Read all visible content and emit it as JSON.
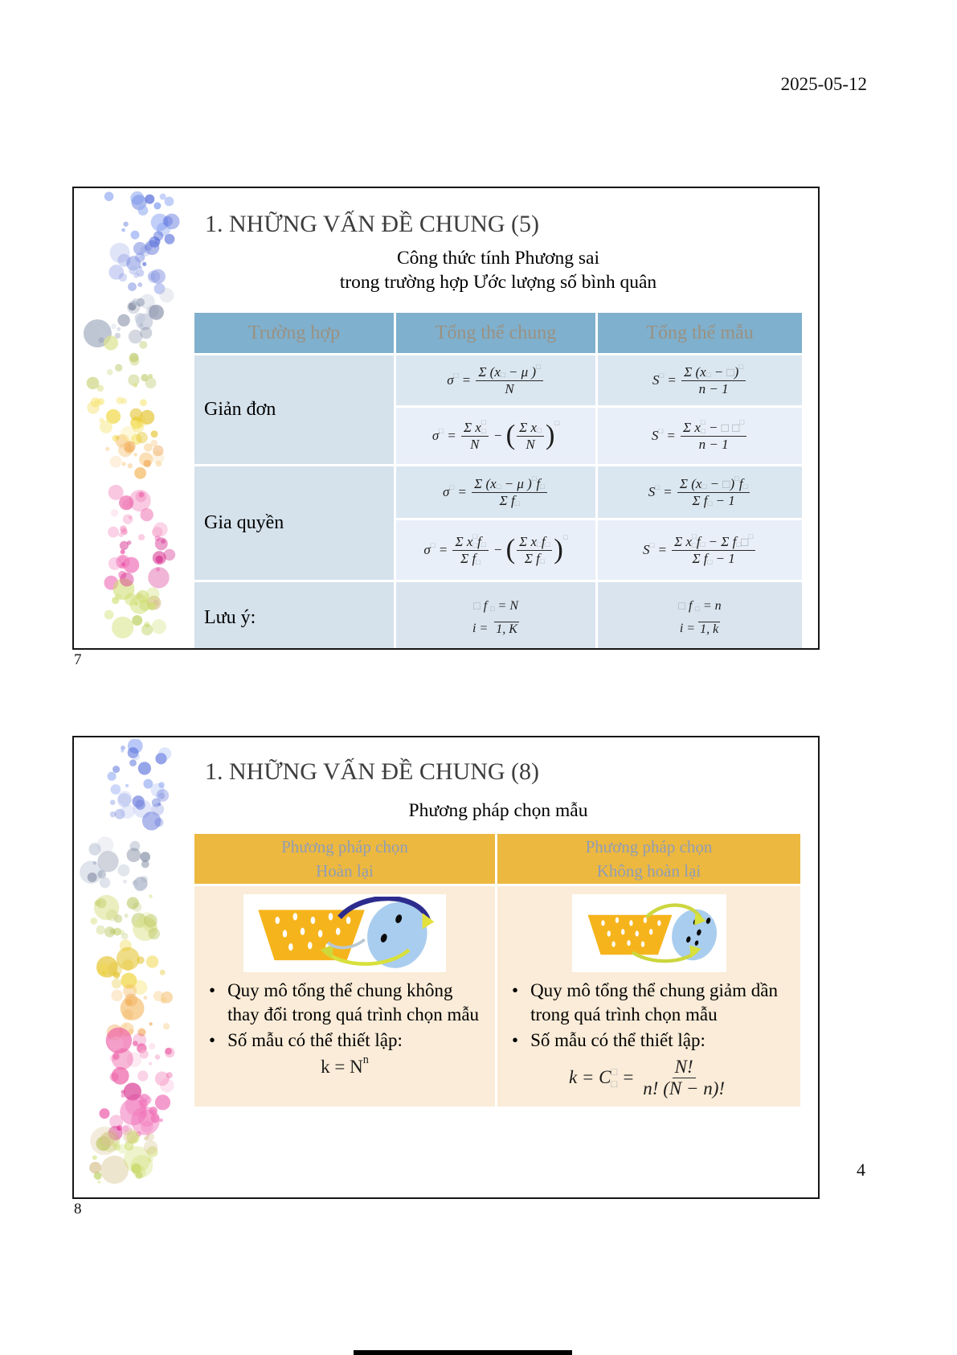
{
  "page": {
    "date": "2025-05-12",
    "page_number": "4"
  },
  "colors": {
    "table1_header_bg": "#7fb0cd",
    "table1_header_text": "#9b9181",
    "table1_row_dark": "#dbe7f0",
    "table1_row_light": "#e9eff8",
    "table1_label_bg": "#d5e2ec",
    "table2_header_bg": "#ecb83f",
    "table2_header_text": "#909db6",
    "table2_body_bg": "#faecd8",
    "basket_orange": "#f6b41c",
    "ball_blue": "#a9cdee"
  },
  "slide7": {
    "number": "7",
    "title": "1. NHỮNG VẤN ĐỀ CHUNG (5)",
    "subtitle1": "Công thức tính Phương sai",
    "subtitle2": "trong trường hợp Ước lượng số bình quân",
    "table": {
      "col_headers": [
        "Trường hợp",
        "Tổng thể chung",
        "Tổng thể mẫu"
      ],
      "rows": {
        "gian_don": {
          "label": "Giản đơn",
          "chung_1": [
            {
              "t": "txt",
              "v": "σ"
            },
            {
              "t": "sup",
              "v": "□"
            },
            {
              "t": "txt",
              "v": " = "
            },
            {
              "t": "frac",
              "num": [
                {
                  "t": "txt",
                  "v": "Σ (x"
                },
                {
                  "t": "sub",
                  "v": "□"
                },
                {
                  "t": "txt",
                  "v": " − μ )"
                },
                {
                  "t": "sup",
                  "v": "□"
                }
              ],
              "den": [
                {
                  "t": "txt",
                  "v": "N"
                }
              ]
            }
          ],
          "mau_1": [
            {
              "t": "txt",
              "v": "S"
            },
            {
              "t": "sup",
              "v": "□"
            },
            {
              "t": "txt",
              "v": " = "
            },
            {
              "t": "frac",
              "num": [
                {
                  "t": "txt",
                  "v": "Σ (x"
                },
                {
                  "t": "sub",
                  "v": "□"
                },
                {
                  "t": "txt",
                  "v": " − □)"
                },
                {
                  "t": "sup",
                  "v": "□"
                }
              ],
              "den": [
                {
                  "t": "txt",
                  "v": "n − 1"
                }
              ]
            }
          ],
          "chung_2": [
            {
              "t": "txt",
              "v": "σ"
            },
            {
              "t": "sup",
              "v": "□"
            },
            {
              "t": "txt",
              "v": " = "
            },
            {
              "t": "frac",
              "num": [
                {
                  "t": "txt",
                  "v": "Σ x"
                },
                {
                  "t": "supsub",
                  "sup": "□",
                  "sub": "□"
                }
              ],
              "den": [
                {
                  "t": "txt",
                  "v": "N"
                }
              ]
            },
            {
              "t": "txt",
              "v": " − "
            },
            {
              "t": "paren",
              "inner": [
                {
                  "t": "frac",
                  "num": [
                    {
                      "t": "txt",
                      "v": "Σ x"
                    },
                    {
                      "t": "sub",
                      "v": "□"
                    }
                  ],
                  "den": [
                    {
                      "t": "txt",
                      "v": "N"
                    }
                  ]
                }
              ]
            },
            {
              "t": "sup",
              "v": "□",
              "hi": true
            }
          ],
          "mau_2": [
            {
              "t": "txt",
              "v": "S"
            },
            {
              "t": "sup",
              "v": "□"
            },
            {
              "t": "txt",
              "v": " = "
            },
            {
              "t": "frac",
              "num": [
                {
                  "t": "txt",
                  "v": "Σ x"
                },
                {
                  "t": "supsub",
                  "sup": "□",
                  "sub": "□"
                },
                {
                  "t": "txt",
                  "v": " − □ □"
                },
                {
                  "t": "sup",
                  "v": "□"
                }
              ],
              "den": [
                {
                  "t": "txt",
                  "v": "n − 1"
                }
              ]
            }
          ]
        },
        "gia_quyen": {
          "label": "Gia quyền",
          "chung_1": [
            {
              "t": "txt",
              "v": "σ"
            },
            {
              "t": "sup",
              "v": "□"
            },
            {
              "t": "txt",
              "v": " = "
            },
            {
              "t": "frac",
              "num": [
                {
                  "t": "txt",
                  "v": "Σ (x"
                },
                {
                  "t": "sub",
                  "v": "□"
                },
                {
                  "t": "txt",
                  "v": " − μ )"
                },
                {
                  "t": "sup",
                  "v": "□"
                },
                {
                  "t": "txt",
                  "v": "f"
                },
                {
                  "t": "sub",
                  "v": "□"
                }
              ],
              "den": [
                {
                  "t": "txt",
                  "v": "Σ f"
                },
                {
                  "t": "sub",
                  "v": "□"
                }
              ]
            }
          ],
          "mau_1": [
            {
              "t": "txt",
              "v": "S"
            },
            {
              "t": "sup",
              "v": "□"
            },
            {
              "t": "txt",
              "v": " = "
            },
            {
              "t": "frac",
              "num": [
                {
                  "t": "txt",
                  "v": "Σ (x"
                },
                {
                  "t": "sub",
                  "v": "□"
                },
                {
                  "t": "txt",
                  "v": " − □)"
                },
                {
                  "t": "sup",
                  "v": "□"
                },
                {
                  "t": "txt",
                  "v": "f"
                },
                {
                  "t": "sub",
                  "v": "□"
                }
              ],
              "den": [
                {
                  "t": "txt",
                  "v": "Σ f"
                },
                {
                  "t": "sub",
                  "v": "□"
                },
                {
                  "t": "txt",
                  "v": " − 1"
                }
              ]
            }
          ],
          "chung_2": [
            {
              "t": "txt",
              "v": "σ"
            },
            {
              "t": "sup",
              "v": "□"
            },
            {
              "t": "txt",
              "v": " = "
            },
            {
              "t": "frac",
              "num": [
                {
                  "t": "txt",
                  "v": "Σ x"
                },
                {
                  "t": "supsub",
                  "sup": "□",
                  "sub": "□"
                },
                {
                  "t": "txt",
                  "v": "f"
                },
                {
                  "t": "sub",
                  "v": "□"
                }
              ],
              "den": [
                {
                  "t": "txt",
                  "v": "Σ f"
                },
                {
                  "t": "sub",
                  "v": "□"
                }
              ]
            },
            {
              "t": "txt",
              "v": " − "
            },
            {
              "t": "paren",
              "inner": [
                {
                  "t": "frac",
                  "num": [
                    {
                      "t": "txt",
                      "v": "Σ x"
                    },
                    {
                      "t": "sub",
                      "v": "□"
                    },
                    {
                      "t": "txt",
                      "v": "f"
                    },
                    {
                      "t": "sub",
                      "v": "□"
                    }
                  ],
                  "den": [
                    {
                      "t": "txt",
                      "v": "Σ f"
                    },
                    {
                      "t": "sub",
                      "v": "□"
                    }
                  ]
                }
              ]
            },
            {
              "t": "sup",
              "v": "□",
              "hi": true
            }
          ],
          "mau_2": [
            {
              "t": "txt",
              "v": "S"
            },
            {
              "t": "sup",
              "v": "□"
            },
            {
              "t": "txt",
              "v": " = "
            },
            {
              "t": "frac",
              "num": [
                {
                  "t": "txt",
                  "v": "Σ x"
                },
                {
                  "t": "supsub",
                  "sup": "□",
                  "sub": "□"
                },
                {
                  "t": "txt",
                  "v": "f"
                },
                {
                  "t": "sub",
                  "v": "□"
                },
                {
                  "t": "txt",
                  "v": " − Σ f"
                },
                {
                  "t": "sub",
                  "v": "□"
                },
                {
                  "t": "txt",
                  "v": "□"
                },
                {
                  "t": "sup",
                  "v": "□"
                }
              ],
              "den": [
                {
                  "t": "txt",
                  "v": "Σ f"
                },
                {
                  "t": "sub",
                  "v": "□"
                },
                {
                  "t": "txt",
                  "v": " − 1"
                }
              ]
            }
          ]
        },
        "luu_y": {
          "label": "Lưu ý:",
          "chung_1": [
            {
              "t": "txt",
              "v": "□ f "
            },
            {
              "t": "sub",
              "v": "□"
            },
            {
              "t": "txt",
              "v": " = N"
            }
          ],
          "chung_2": [
            {
              "t": "txt",
              "v": "i =  "
            },
            {
              "t": "ovl",
              "v": "1, K"
            }
          ],
          "mau_1": [
            {
              "t": "txt",
              "v": "□ f "
            },
            {
              "t": "sub",
              "v": "□"
            },
            {
              "t": "txt",
              "v": " = n"
            }
          ],
          "mau_2": [
            {
              "t": "txt",
              "v": "i = "
            },
            {
              "t": "ovl",
              "v": "1, k"
            }
          ]
        }
      }
    }
  },
  "slide8": {
    "number": "8",
    "title": "1. NHỮNG VẤN ĐỀ CHUNG (8)",
    "subtitle": "Phương pháp chọn mẫu",
    "table": {
      "header_left": [
        "Phương pháp chọn",
        "Hoàn lại"
      ],
      "header_right": [
        "Phương pháp chọn",
        "Không hoàn lại"
      ],
      "left": {
        "bullets": [
          "Quy mô tổng thể chung không thay đổi trong quá trình chọn mẫu",
          "Số mẫu có thể thiết lập:"
        ],
        "formula": [
          {
            "t": "txt",
            "v": "k = N"
          },
          {
            "t": "sup",
            "v": "n"
          }
        ]
      },
      "right": {
        "bullets": [
          "Quy mô tổng thể chung giảm dần trong quá trình chọn mẫu",
          "Số mẫu có thể thiết lập:"
        ],
        "formula": [
          {
            "t": "txt",
            "v": "k = C"
          },
          {
            "t": "supsub",
            "sup": "□",
            "sub": "□"
          },
          {
            "t": "txt",
            "v": " = "
          },
          {
            "t": "frac",
            "num": [
              {
                "t": "txt",
                "v": "N!"
              }
            ],
            "den": [
              {
                "t": "txt",
                "v": "n! (N − n)!"
              }
            ]
          }
        ]
      }
    }
  }
}
